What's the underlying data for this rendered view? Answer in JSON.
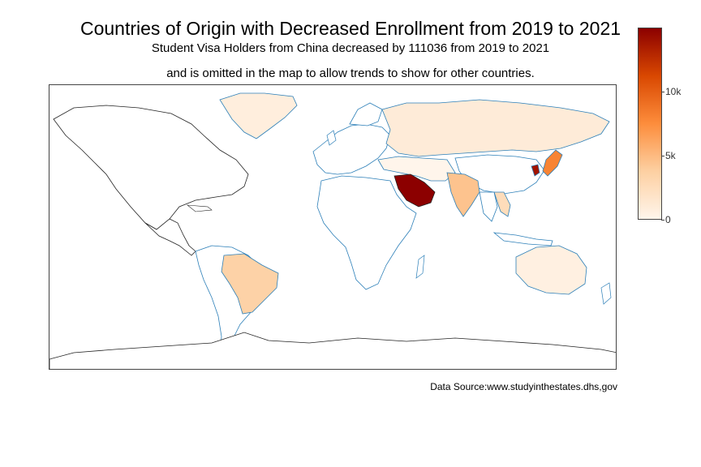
{
  "title": "Countries of Origin with Decreased Enrollment from 2019 to 2021",
  "subtitle_line1": "Student Visa Holders from China decreased by 111036 from 2019 to 2021",
  "subtitle_line2": "and is omitted in the map to allow trends to show for other countries.",
  "source": "Data Source:www.studyinthestates.dhs,gov",
  "colorbar": {
    "colorscale": [
      "#fff5eb",
      "#fdd0a2",
      "#fd8d3c",
      "#d94801",
      "#8c0000"
    ],
    "min": 0,
    "max": 15000,
    "ticks": [
      {
        "label": "10k",
        "value": 10000
      },
      {
        "label": "5k",
        "value": 5000
      },
      {
        "label": "0",
        "value": 0
      }
    ]
  },
  "colors": {
    "border_colored": "#2c7fb8",
    "border_plain": "#222222",
    "frame": "#444444"
  },
  "regions": [
    {
      "name": "Saudi Arabia",
      "value": 15000
    },
    {
      "name": "South Korea",
      "value": 14000
    },
    {
      "name": "Japan",
      "value": 8000
    },
    {
      "name": "India",
      "value": 4500
    },
    {
      "name": "Brazil",
      "value": 3500
    },
    {
      "name": "Vietnam",
      "value": 2500
    },
    {
      "name": "Russia",
      "value": 1000
    },
    {
      "name": "Australia",
      "value": 500
    },
    {
      "name": "Greenland",
      "value": 700
    }
  ]
}
